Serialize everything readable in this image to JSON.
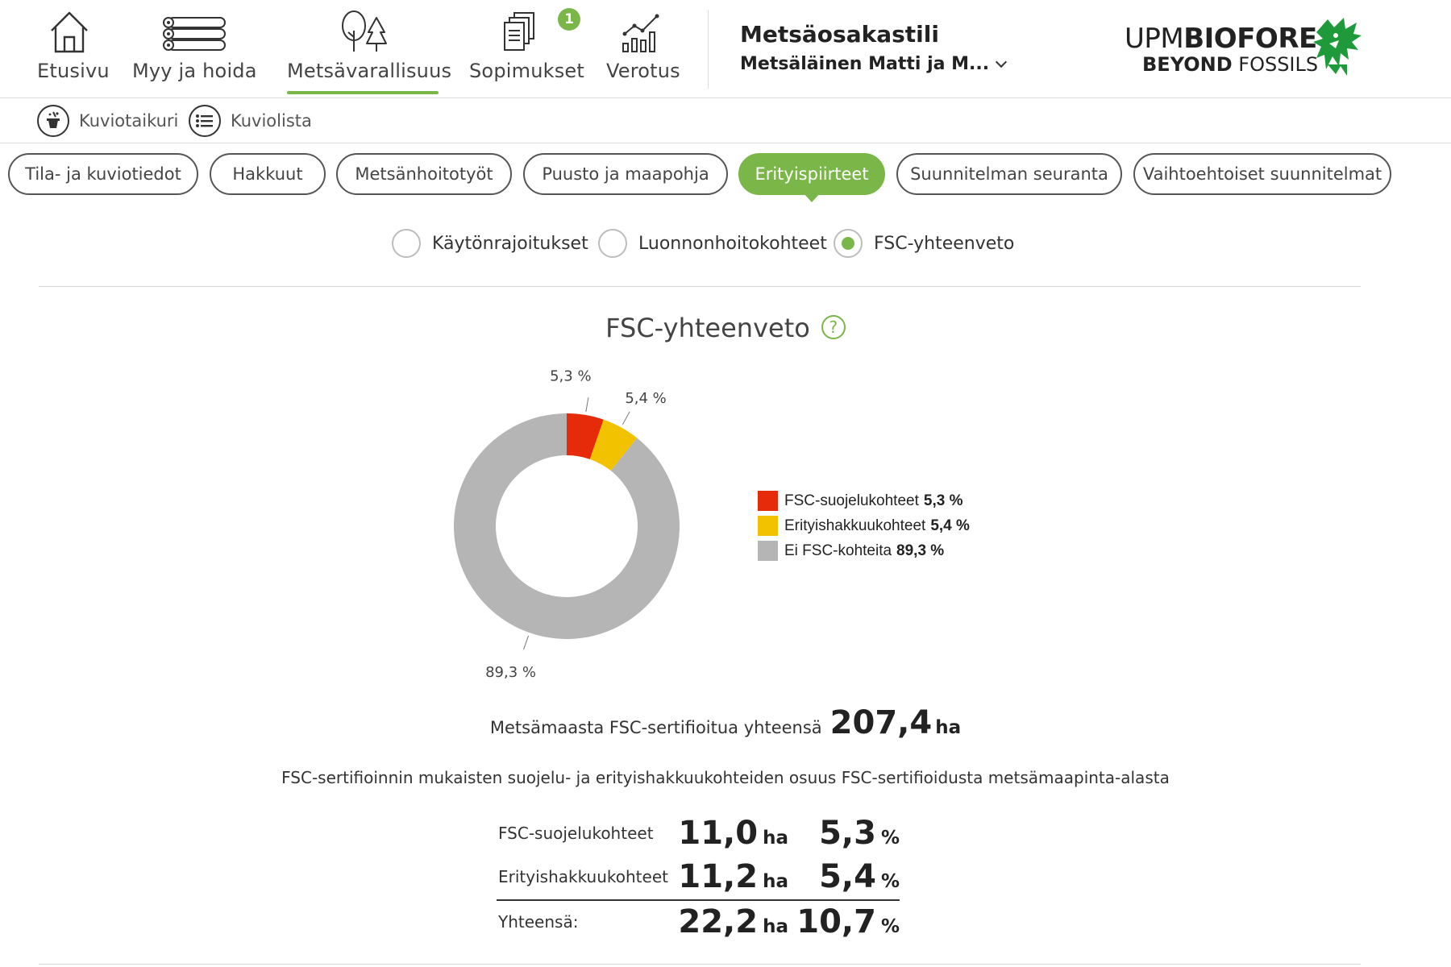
{
  "nav": {
    "items": [
      {
        "label": "Etusivu",
        "icon": "home-icon"
      },
      {
        "label": "Myy ja hoida",
        "icon": "logs-icon"
      },
      {
        "label": "Metsävarallisuus",
        "icon": "trees-icon",
        "active": true
      },
      {
        "label": "Sopimukset",
        "icon": "documents-icon",
        "badge": "1"
      },
      {
        "label": "Verotus",
        "icon": "chart-icon"
      }
    ],
    "accent_color": "#7ab648"
  },
  "account": {
    "title": "Metsäosakastili",
    "name": "Metsäläinen Matti ja M..."
  },
  "logo": {
    "upm": "UPM",
    "biofore": "BIOFORE",
    "beyond": "BEYOND",
    "fossils": "FOSSILS"
  },
  "subbar": {
    "items": [
      {
        "label": "Kuviotaikuri",
        "icon": "magic-hat-icon"
      },
      {
        "label": "Kuviolista",
        "icon": "list-icon"
      }
    ]
  },
  "tabs": [
    {
      "label": "Tila- ja kuviotiedot"
    },
    {
      "label": "Hakkuut"
    },
    {
      "label": "Metsänhoitotyöt"
    },
    {
      "label": "Puusto ja maapohja"
    },
    {
      "label": "Erityispiirteet",
      "active": true
    },
    {
      "label": "Suunnitelman seuranta"
    },
    {
      "label": "Vaihtoehtoiset suunnitelmat"
    }
  ],
  "radios": [
    {
      "label": "Käytönrajoitukset",
      "checked": false
    },
    {
      "label": "Luonnonhoitokohteet",
      "checked": false
    },
    {
      "label": "FSC-yhteenveto",
      "checked": true
    }
  ],
  "section": {
    "title": "FSC-yhteenveto",
    "help": "?"
  },
  "chart_data": {
    "type": "pie",
    "donut": true,
    "categories": [
      "FSC-suojelukohteet",
      "Erityishakkuukohteet",
      "Ei FSC-kohteita"
    ],
    "values": [
      5.3,
      5.4,
      89.3
    ],
    "data_labels": [
      "5,3 %",
      "5,4 %",
      "89,3 %"
    ],
    "legend_values": [
      "5,3 %",
      "5,4 %",
      "89,3 %"
    ],
    "colors": [
      "#e52b0a",
      "#f2c200",
      "#b5b5b5"
    ],
    "legend_position": "right"
  },
  "summary": {
    "total_label": "Metsämaasta FSC-sertifioitua yhteensä",
    "total_value": "207,4",
    "total_unit": "ha",
    "description": "FSC-sertifioinnin mukaisten suojelu- ja erityishakkuukohteiden osuus FSC-sertifioidusta metsämaapinta-alasta",
    "rows": [
      {
        "label": "FSC-suojelukohteet",
        "ha": "11,0",
        "ha_unit": "ha",
        "pct": "5,3",
        "pct_unit": "%"
      },
      {
        "label": "Erityishakkuukohteet",
        "ha": "11,2",
        "ha_unit": "ha",
        "pct": "5,4",
        "pct_unit": "%"
      }
    ],
    "total_row": {
      "label": "Yhteensä:",
      "ha": "22,2",
      "ha_unit": "ha",
      "pct": "10,7",
      "pct_unit": "%"
    }
  }
}
